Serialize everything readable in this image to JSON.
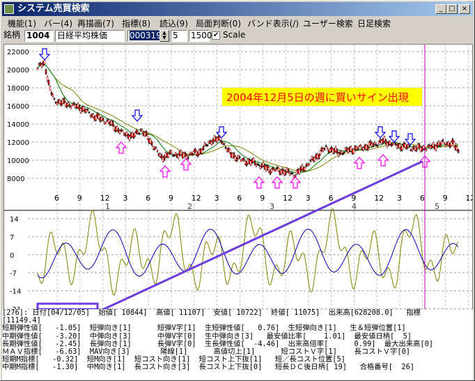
{
  "window": {
    "title": "システム売買検索",
    "minimize_symbol": "_",
    "maximize_symbol": "□",
    "close_symbol": "×"
  },
  "menu": {
    "items": [
      "機能(1)",
      "バー(4)",
      "再描画(7)",
      "指標(8)",
      "読込(9)",
      "局面判断(0)",
      "バンド表示(/)",
      "ユーザー検索",
      "日足検索"
    ]
  },
  "toolbar": {
    "code_label": "銘柄",
    "code": "1004",
    "name": "日経平均株価",
    "position": "000319",
    "step": "5",
    "span": "1500",
    "scale_label": "Scale",
    "scale_checked": true
  },
  "chart": {
    "annotation": "2004年12月5日の週に買いサイン出現",
    "accent": "#6c3ce0",
    "candle_color": "#ff0000",
    "price_axis_ticks": [
      "22000",
      "20000",
      "18000",
      "16000",
      "14000",
      "12000",
      "10000",
      "8000"
    ],
    "month_ticks": [
      "6",
      "9",
      "12",
      "3",
      "6",
      "9",
      "12",
      "3",
      "6",
      "9",
      "12",
      "3",
      "6",
      "9",
      "12",
      "3",
      "6",
      "9",
      "12",
      "3"
    ],
    "year_labels": [
      "1",
      "2",
      "3",
      "4",
      "5"
    ],
    "osc_axis_ticks": [
      "14",
      "7",
      "0",
      "-7",
      "-14",
      "-21"
    ]
  },
  "status": {
    "lines": [
      "[276]: 日付[04/12/05]  始値[ 10844]  高値[ 11107]  安値[ 10722]  終値[ 11075]  出来高[628208.0]   指標",
      "[11149.4]",
      "短期弾性値[   -1.05]  短弾向き[1]      短弾V字[1]  生短弾性値[   0.76]  生短弾向き[1]   生＆短弾位置[1]",
      "中期弾性値[   -3.20]  中弾向き[3]      中弾V字[0]  生中弾向き[3]   最安値比率[    1.01]  最安値日柄[  5]",
      "長期弾性値[   -2.45]  長弾向き[1]      長弾V字[0]  生長弾性値[  -4.46]  出来高倍率[      0.99]  最大出来高[0]",
      "ＭＡＶ指標[   -6.63]  MAV向き[3]       陽線[1]      高値切上[1]      短コストＶ字[1]    長コストＶ字[0]",
      "短期M指標[   -0.32]  短M向き[1]  短コスト向き[1]  短コスト上下抜[1]   短／長コスト位置[5]",
      "中期M指標[   -1.30]  中M向き[1]  長コスト向き[3]  長コスト上下抜[0]   短長ＤＣ後日柄[ 19]   合格番号[  26]"
    ]
  }
}
